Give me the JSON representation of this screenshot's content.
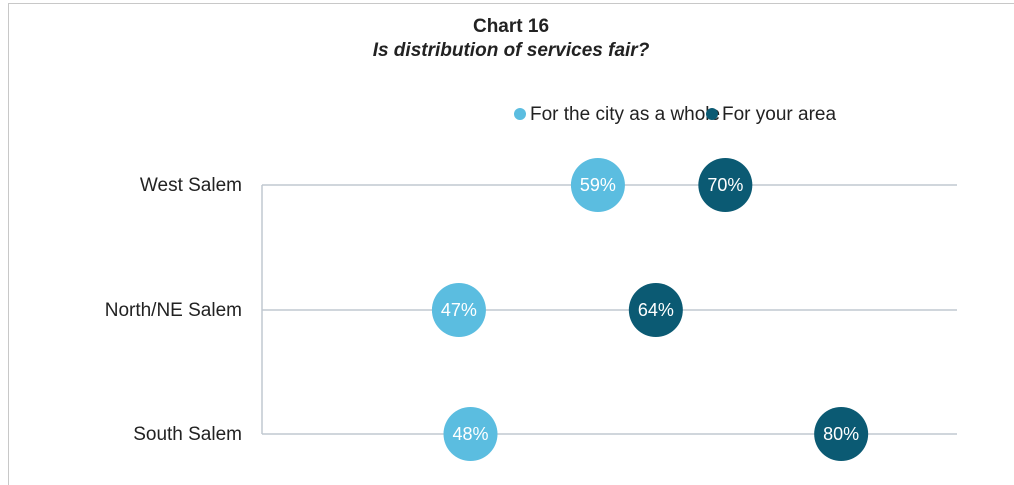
{
  "chart_data": {
    "type": "dot",
    "title": "Chart 16",
    "subtitle": "Is distribution of services fair?",
    "categories": [
      "West Salem",
      "North/NE Salem",
      "South Salem"
    ],
    "series": [
      {
        "name": "For the city as a whole",
        "color": "#5bbde0",
        "values": [
          59,
          47,
          48
        ],
        "value_labels": [
          "59%",
          "47%",
          "48%"
        ]
      },
      {
        "name": "For your area",
        "color": "#0b5a73",
        "values": [
          70,
          64,
          80
        ],
        "value_labels": [
          "70%",
          "64%",
          "80%"
        ]
      }
    ],
    "xlim": [
      30,
      90
    ]
  }
}
